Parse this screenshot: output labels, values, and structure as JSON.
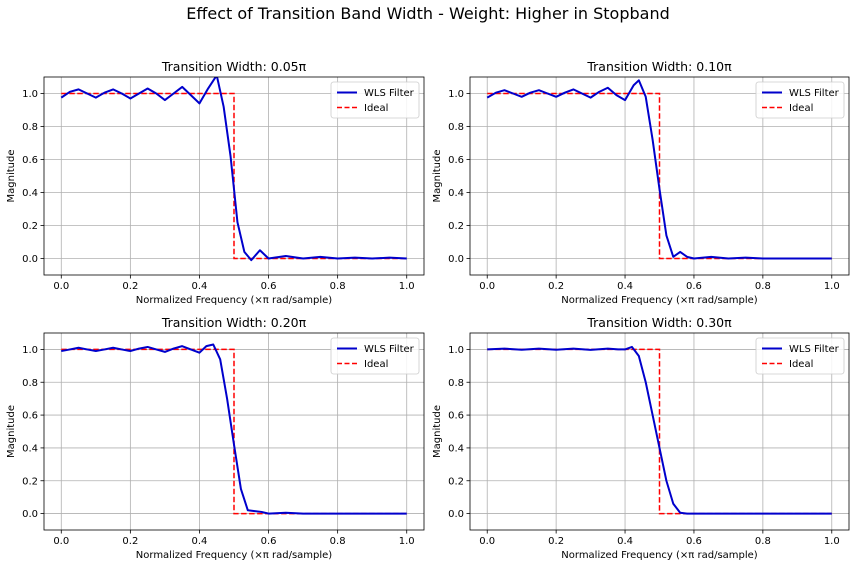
{
  "figure": {
    "title": "Effect of Transition Band Width - Weight: Higher in Stopband"
  },
  "chart_data": [
    {
      "type": "line",
      "title": "Transition Width: 0.05π",
      "xlabel": "Normalized Frequency (×π rad/sample)",
      "ylabel": "Magnitude",
      "xlim": [
        -0.05,
        1.05
      ],
      "ylim": [
        -0.1,
        1.1
      ],
      "xticks": [
        "0.0",
        "0.2",
        "0.4",
        "0.6",
        "0.8",
        "1.0"
      ],
      "yticks": [
        "0.0",
        "0.2",
        "0.4",
        "0.6",
        "0.8",
        "1.0"
      ],
      "grid": true,
      "legend_position": "top-right",
      "series": [
        {
          "name": "WLS Filter",
          "color": "#0000cc",
          "style": "solid",
          "x": [
            0.0,
            0.025,
            0.05,
            0.075,
            0.1,
            0.125,
            0.15,
            0.175,
            0.2,
            0.225,
            0.25,
            0.275,
            0.3,
            0.325,
            0.35,
            0.375,
            0.4,
            0.425,
            0.45,
            0.47,
            0.49,
            0.5,
            0.51,
            0.53,
            0.55,
            0.575,
            0.6,
            0.65,
            0.7,
            0.75,
            0.8,
            0.85,
            0.9,
            0.95,
            1.0
          ],
          "y": [
            0.975,
            1.01,
            1.025,
            1.0,
            0.975,
            1.005,
            1.025,
            1.0,
            0.97,
            1.0,
            1.03,
            1.0,
            0.96,
            1.0,
            1.04,
            0.99,
            0.94,
            1.03,
            1.11,
            0.92,
            0.62,
            0.42,
            0.22,
            0.04,
            -0.01,
            0.05,
            0.0,
            0.015,
            0.0,
            0.01,
            0.0,
            0.005,
            0.0,
            0.005,
            0.0
          ]
        },
        {
          "name": "Ideal",
          "color": "#ff0000",
          "style": "dashed",
          "x": [
            0.0,
            0.5,
            0.5,
            1.0
          ],
          "y": [
            1,
            1,
            0,
            0
          ]
        }
      ]
    },
    {
      "type": "line",
      "title": "Transition Width: 0.10π",
      "xlabel": "Normalized Frequency (×π rad/sample)",
      "ylabel": "Magnitude",
      "xlim": [
        -0.05,
        1.05
      ],
      "ylim": [
        -0.1,
        1.1
      ],
      "xticks": [
        "0.0",
        "0.2",
        "0.4",
        "0.6",
        "0.8",
        "1.0"
      ],
      "yticks": [
        "0.0",
        "0.2",
        "0.4",
        "0.6",
        "0.8",
        "1.0"
      ],
      "grid": true,
      "legend_position": "top-right",
      "series": [
        {
          "name": "WLS Filter",
          "color": "#0000cc",
          "style": "solid",
          "x": [
            0.0,
            0.025,
            0.05,
            0.075,
            0.1,
            0.125,
            0.15,
            0.175,
            0.2,
            0.225,
            0.25,
            0.275,
            0.3,
            0.325,
            0.35,
            0.375,
            0.4,
            0.425,
            0.44,
            0.46,
            0.48,
            0.5,
            0.52,
            0.54,
            0.56,
            0.58,
            0.6,
            0.65,
            0.7,
            0.75,
            0.8,
            0.85,
            0.9,
            0.95,
            1.0
          ],
          "y": [
            0.975,
            1.005,
            1.02,
            1.0,
            0.98,
            1.005,
            1.02,
            1.0,
            0.98,
            1.005,
            1.025,
            1.0,
            0.975,
            1.01,
            1.035,
            0.99,
            0.96,
            1.05,
            1.08,
            0.98,
            0.72,
            0.42,
            0.14,
            0.01,
            0.04,
            0.01,
            0.0,
            0.01,
            0.0,
            0.005,
            0.0,
            0.0,
            0.0,
            0.0,
            0.0
          ]
        },
        {
          "name": "Ideal",
          "color": "#ff0000",
          "style": "dashed",
          "x": [
            0.0,
            0.5,
            0.5,
            1.0
          ],
          "y": [
            1,
            1,
            0,
            0
          ]
        }
      ]
    },
    {
      "type": "line",
      "title": "Transition Width: 0.20π",
      "xlabel": "Normalized Frequency (×π rad/sample)",
      "ylabel": "Magnitude",
      "xlim": [
        -0.05,
        1.05
      ],
      "ylim": [
        -0.1,
        1.1
      ],
      "xticks": [
        "0.0",
        "0.2",
        "0.4",
        "0.6",
        "0.8",
        "1.0"
      ],
      "yticks": [
        "0.0",
        "0.2",
        "0.4",
        "0.6",
        "0.8",
        "1.0"
      ],
      "grid": true,
      "legend_position": "top-right",
      "series": [
        {
          "name": "WLS Filter",
          "color": "#0000cc",
          "style": "solid",
          "x": [
            0.0,
            0.025,
            0.05,
            0.075,
            0.1,
            0.125,
            0.15,
            0.175,
            0.2,
            0.225,
            0.25,
            0.275,
            0.3,
            0.325,
            0.35,
            0.375,
            0.4,
            0.42,
            0.44,
            0.46,
            0.48,
            0.5,
            0.52,
            0.54,
            0.56,
            0.58,
            0.6,
            0.65,
            0.7,
            0.75,
            0.8,
            0.9,
            1.0
          ],
          "y": [
            0.99,
            1.0,
            1.01,
            1.0,
            0.99,
            1.0,
            1.01,
            1.0,
            0.99,
            1.005,
            1.015,
            1.0,
            0.985,
            1.005,
            1.02,
            1.0,
            0.98,
            1.02,
            1.03,
            0.94,
            0.7,
            0.42,
            0.15,
            0.02,
            0.015,
            0.01,
            0.0,
            0.005,
            0.0,
            0.0,
            0.0,
            0.0,
            0.0
          ]
        },
        {
          "name": "Ideal",
          "color": "#ff0000",
          "style": "dashed",
          "x": [
            0.0,
            0.5,
            0.5,
            1.0
          ],
          "y": [
            1,
            1,
            0,
            0
          ]
        }
      ]
    },
    {
      "type": "line",
      "title": "Transition Width: 0.30π",
      "xlabel": "Normalized Frequency (×π rad/sample)",
      "ylabel": "Magnitude",
      "xlim": [
        -0.05,
        1.05
      ],
      "ylim": [
        -0.1,
        1.1
      ],
      "xticks": [
        "0.0",
        "0.2",
        "0.4",
        "0.6",
        "0.8",
        "1.0"
      ],
      "yticks": [
        "0.0",
        "0.2",
        "0.4",
        "0.6",
        "0.8",
        "1.0"
      ],
      "grid": true,
      "legend_position": "top-right",
      "series": [
        {
          "name": "WLS Filter",
          "color": "#0000cc",
          "style": "solid",
          "x": [
            0.0,
            0.05,
            0.1,
            0.15,
            0.2,
            0.25,
            0.3,
            0.35,
            0.38,
            0.4,
            0.42,
            0.44,
            0.46,
            0.48,
            0.5,
            0.52,
            0.54,
            0.56,
            0.58,
            0.6,
            0.7,
            0.8,
            0.9,
            1.0
          ],
          "y": [
            1.0,
            1.005,
            0.998,
            1.005,
            0.998,
            1.005,
            0.997,
            1.005,
            1.0,
            1.0,
            1.015,
            0.96,
            0.8,
            0.6,
            0.4,
            0.2,
            0.06,
            0.005,
            0.0,
            0.0,
            0.0,
            0.0,
            0.0,
            0.0
          ]
        },
        {
          "name": "Ideal",
          "color": "#ff0000",
          "style": "dashed",
          "x": [
            0.0,
            0.5,
            0.5,
            1.0
          ],
          "y": [
            1,
            1,
            0,
            0
          ]
        }
      ]
    }
  ]
}
